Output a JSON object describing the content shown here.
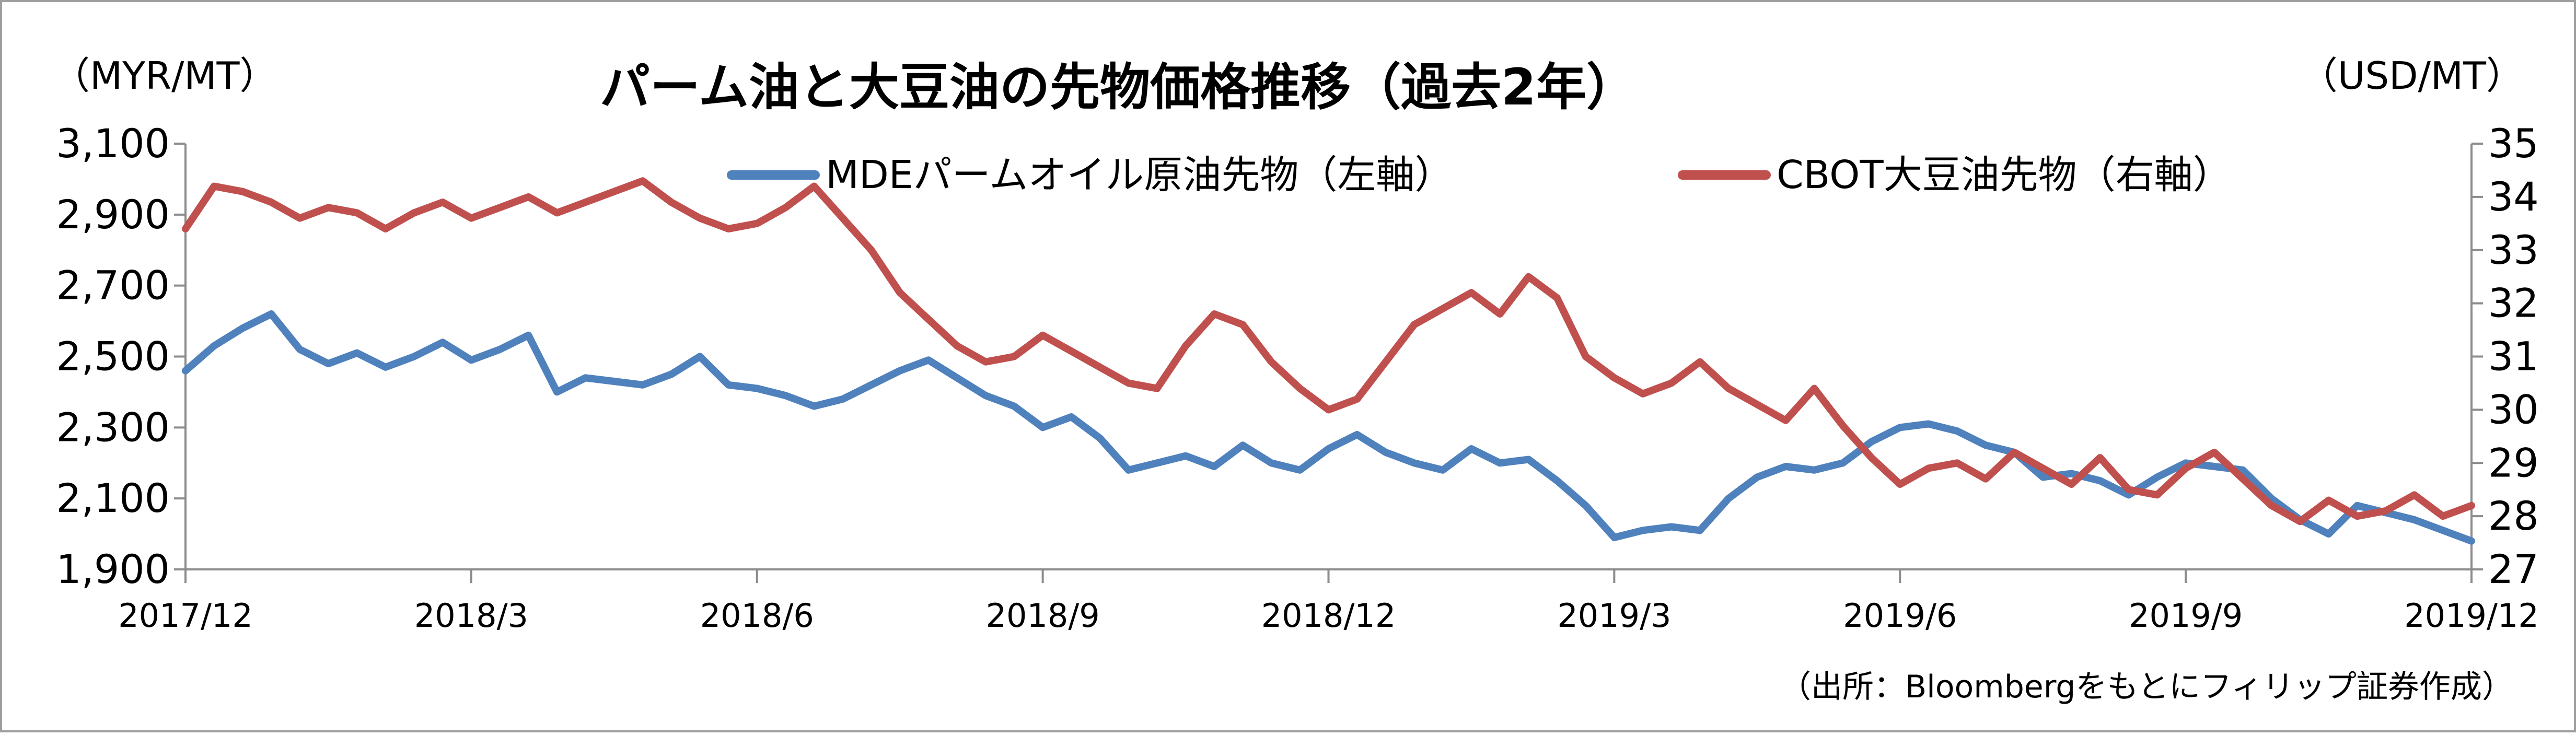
{
  "chart_data": {
    "type": "line",
    "title": "パーム油と大豆油の先物価格推移（過去2年）",
    "left_unit": "（MYR/MT）",
    "right_unit": "（USD/MT）",
    "source": "（出所：Bloombergをもとにフィリップ証券作成）",
    "x_ticks": [
      "2017/12",
      "2018/3",
      "2018/6",
      "2018/9",
      "2018/12",
      "2019/3",
      "2019/6",
      "2019/9",
      "2019/12"
    ],
    "y_left": {
      "min": 1900,
      "max": 3100,
      "ticks": [
        "1,900",
        "2,100",
        "2,300",
        "2,500",
        "2,700",
        "2,900",
        "3,100"
      ]
    },
    "y_right": {
      "min": 27,
      "max": 35,
      "ticks": [
        "27",
        "28",
        "29",
        "30",
        "31",
        "32",
        "33",
        "34",
        "35"
      ]
    },
    "series": [
      {
        "name": "MDEパームオイル原油先物（左軸）",
        "axis": "left",
        "color": "#4f81bd",
        "x": [
          0,
          0.3,
          0.6,
          0.9,
          1.2,
          1.5,
          1.8,
          2.1,
          2.4,
          2.7,
          3.0,
          3.3,
          3.6,
          3.9,
          4.2,
          4.5,
          4.8,
          5.1,
          5.4,
          5.7,
          6.0,
          6.3,
          6.6,
          6.9,
          7.2,
          7.5,
          7.8,
          8.1,
          8.4,
          8.7,
          9.0,
          9.3,
          9.6,
          9.9,
          10.2,
          10.5,
          10.8,
          11.1,
          11.4,
          11.7,
          12.0,
          12.3,
          12.6,
          12.9,
          13.2,
          13.5,
          13.8,
          14.1,
          14.4,
          14.7,
          15.0,
          15.3,
          15.6,
          15.9,
          16.2,
          16.5,
          16.8,
          17.1,
          17.4,
          17.7,
          18.0,
          18.3,
          18.6,
          18.9,
          19.2,
          19.5,
          19.8,
          20.1,
          20.4,
          20.7,
          21.0,
          21.3,
          21.6,
          21.9,
          22.2,
          22.5,
          22.8,
          23.1,
          23.4,
          23.7,
          24.0
        ],
        "y": [
          2460,
          2530,
          2580,
          2620,
          2520,
          2480,
          2510,
          2470,
          2500,
          2540,
          2490,
          2520,
          2560,
          2400,
          2440,
          2430,
          2420,
          2450,
          2500,
          2420,
          2410,
          2390,
          2360,
          2380,
          2420,
          2460,
          2490,
          2440,
          2390,
          2360,
          2300,
          2330,
          2270,
          2180,
          2200,
          2220,
          2190,
          2250,
          2200,
          2180,
          2240,
          2280,
          2230,
          2200,
          2180,
          2240,
          2200,
          2210,
          2150,
          2080,
          1990,
          2010,
          2020,
          2010,
          2100,
          2160,
          2190,
          2180,
          2200,
          2260,
          2300,
          2310,
          2290,
          2250,
          2230,
          2160,
          2170,
          2150,
          2110,
          2160,
          2200,
          2190,
          2180,
          2100,
          2040,
          2000,
          2080,
          2060,
          2040,
          2010,
          1980
        ]
      },
      {
        "name": "CBOT大豆油先物（右軸）",
        "axis": "right",
        "color": "#c0504d",
        "x": [
          0,
          0.3,
          0.6,
          0.9,
          1.2,
          1.5,
          1.8,
          2.1,
          2.4,
          2.7,
          3.0,
          3.3,
          3.6,
          3.9,
          4.2,
          4.5,
          4.8,
          5.1,
          5.4,
          5.7,
          6.0,
          6.3,
          6.6,
          6.9,
          7.2,
          7.5,
          7.8,
          8.1,
          8.4,
          8.7,
          9.0,
          9.3,
          9.6,
          9.9,
          10.2,
          10.5,
          10.8,
          11.1,
          11.4,
          11.7,
          12.0,
          12.3,
          12.6,
          12.9,
          13.2,
          13.5,
          13.8,
          14.1,
          14.4,
          14.7,
          15.0,
          15.3,
          15.6,
          15.9,
          16.2,
          16.5,
          16.8,
          17.1,
          17.4,
          17.7,
          18.0,
          18.3,
          18.6,
          18.9,
          19.2,
          19.5,
          19.8,
          20.1,
          20.4,
          20.7,
          21.0,
          21.3,
          21.6,
          21.9,
          22.2,
          22.5,
          22.8,
          23.1,
          23.4,
          23.7,
          24.0
        ],
        "y": [
          33.4,
          34.2,
          34.1,
          33.9,
          33.6,
          33.8,
          33.7,
          33.4,
          33.7,
          33.9,
          33.6,
          33.8,
          34.0,
          33.7,
          33.9,
          34.1,
          34.3,
          33.9,
          33.6,
          33.4,
          33.5,
          33.8,
          34.2,
          33.6,
          33.0,
          32.2,
          31.7,
          31.2,
          30.9,
          31.0,
          31.4,
          31.1,
          30.8,
          30.5,
          30.4,
          31.2,
          31.8,
          31.6,
          30.9,
          30.4,
          30.0,
          30.2,
          30.9,
          31.6,
          31.9,
          32.2,
          31.8,
          32.5,
          32.1,
          31.0,
          30.6,
          30.3,
          30.5,
          30.9,
          30.4,
          30.1,
          29.8,
          30.4,
          29.7,
          29.1,
          28.6,
          28.9,
          29.0,
          28.7,
          29.2,
          28.9,
          28.6,
          29.1,
          28.5,
          28.4,
          28.9,
          29.2,
          28.7,
          28.2,
          27.9,
          28.3,
          28.0,
          28.1,
          28.4,
          28.0,
          28.2
        ]
      }
    ]
  }
}
